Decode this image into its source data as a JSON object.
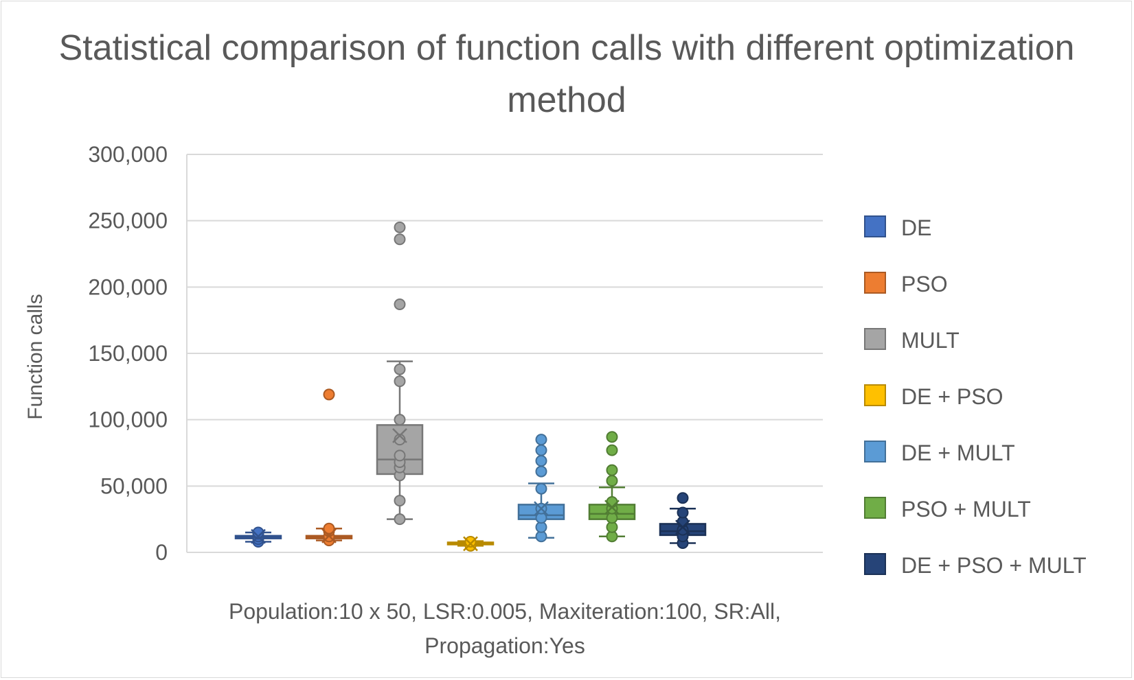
{
  "chart_data": {
    "type": "box",
    "title": "Statistical comparison of function calls with different optimization method",
    "ylabel": "Function calls",
    "xlabel": "",
    "category_label": "Population:10 x 50, LSR:0.005, Maxiteration:100, SR:All, Propagation:Yes",
    "ylim": [
      0,
      300000
    ],
    "yticks": [
      0,
      50000,
      100000,
      150000,
      200000,
      250000,
      300000
    ],
    "ytick_labels": [
      "0",
      "50,000",
      "100,000",
      "150,000",
      "200,000",
      "250,000",
      "300,000"
    ],
    "grid": true,
    "legend_position": "right",
    "series": [
      {
        "name": "DE",
        "color": "#4472c4",
        "min": 8000,
        "q1": 10500,
        "median": 11500,
        "q3": 12500,
        "max": 15000,
        "mean": 12000,
        "points": [
          8000,
          10000,
          12000,
          14000,
          15000
        ]
      },
      {
        "name": "PSO",
        "color": "#ed7d31",
        "min": 9000,
        "q1": 10500,
        "median": 11500,
        "q3": 12500,
        "max": 18000,
        "mean": 12500,
        "points": [
          9000,
          12000,
          16000,
          18000
        ],
        "outliers": [
          119000
        ]
      },
      {
        "name": "MULT",
        "color": "#a5a5a5",
        "min": 25000,
        "q1": 59000,
        "median": 70000,
        "q3": 96000,
        "max": 144000,
        "mean": 88000,
        "points": [
          25000,
          39000,
          58000,
          64000,
          68000,
          73000,
          85000,
          100000,
          129000,
          138000
        ],
        "outliers": [
          187000,
          236000,
          245000
        ]
      },
      {
        "name": "DE + PSO",
        "color": "#ffc000",
        "min": 5000,
        "q1": 6000,
        "median": 6500,
        "q3": 7500,
        "max": 8500,
        "mean": 6500,
        "points": [
          5000,
          8000
        ]
      },
      {
        "name": "DE + MULT",
        "color": "#5b9bd5",
        "min": 11000,
        "q1": 25000,
        "median": 28000,
        "q3": 36000,
        "max": 52000,
        "mean": 33000,
        "points": [
          12000,
          19000,
          26000,
          33000,
          48000
        ],
        "outliers": [
          61000,
          69000,
          77000,
          85000
        ]
      },
      {
        "name": "PSO + MULT",
        "color": "#70ad47",
        "min": 12000,
        "q1": 25000,
        "median": 29000,
        "q3": 36000,
        "max": 49000,
        "mean": 34000,
        "points": [
          12000,
          19000,
          26000,
          33000,
          38000
        ],
        "outliers": [
          54000,
          62000,
          77000,
          87000
        ]
      },
      {
        "name": "DE + PSO + MULT",
        "color": "#264478",
        "min": 7000,
        "q1": 13000,
        "median": 16000,
        "q3": 21500,
        "max": 33000,
        "mean": 19000,
        "points": [
          7000,
          12000,
          17000,
          23000,
          30000
        ],
        "outliers": [
          41000
        ]
      }
    ]
  }
}
